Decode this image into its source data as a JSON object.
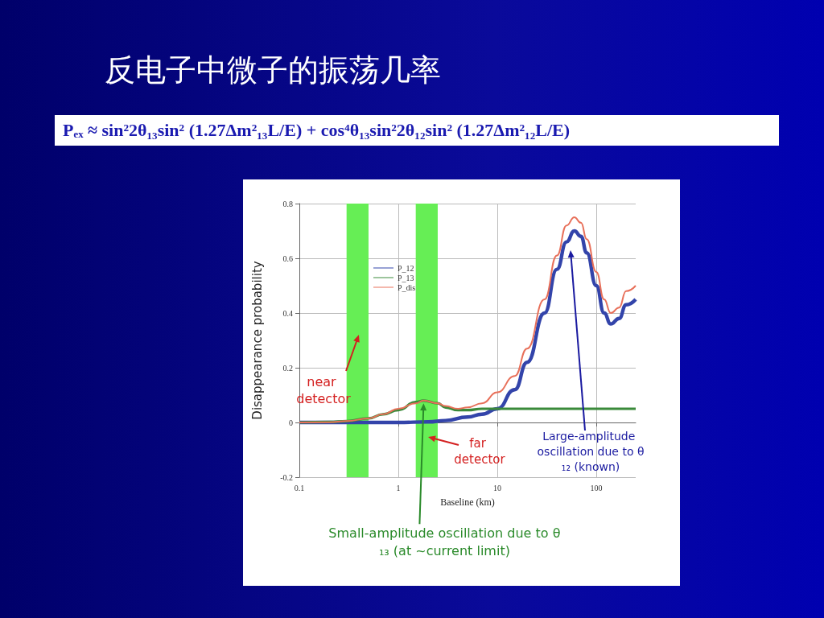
{
  "chart_data": {
    "type": "line",
    "title": "反电子中微子的振荡几率",
    "xlabel": "Baseline (km)",
    "ylabel": "Disappearance probability",
    "log": "x",
    "xlim": [
      0.1,
      250
    ],
    "xticks": [
      0.1,
      1,
      10,
      100
    ],
    "ylim": [
      -0.2,
      0.8
    ],
    "yticks": [
      -0.2,
      0,
      0.2,
      0.4,
      0.6,
      0.8
    ],
    "grid": true,
    "legend": "top left",
    "marker": "none",
    "series": [
      {
        "name": "P_12",
        "color": "#3344aa",
        "x": [
          0.1,
          0.3,
          1,
          2,
          3,
          5,
          7,
          10,
          15,
          20,
          30,
          40,
          50,
          60,
          70,
          80,
          100,
          120,
          140,
          170,
          200,
          250
        ],
        "values": [
          0,
          0,
          0,
          0.002,
          0.007,
          0.02,
          0.03,
          0.05,
          0.12,
          0.22,
          0.4,
          0.56,
          0.66,
          0.7,
          0.68,
          0.62,
          0.5,
          0.4,
          0.36,
          0.38,
          0.43,
          0.45
        ]
      },
      {
        "name": "P_13",
        "color": "#3a8a3a",
        "x": [
          0.1,
          0.2,
          0.3,
          0.5,
          0.7,
          1,
          1.5,
          1.8,
          2.5,
          3,
          4,
          5,
          7,
          10,
          20,
          50,
          100,
          250
        ],
        "values": [
          0,
          0.002,
          0.005,
          0.015,
          0.03,
          0.045,
          0.075,
          0.08,
          0.07,
          0.055,
          0.045,
          0.045,
          0.05,
          0.05,
          0.05,
          0.05,
          0.05,
          0.05
        ]
      },
      {
        "name": "P_dis",
        "color": "#e8705a",
        "x": [
          0.1,
          0.2,
          0.3,
          0.5,
          0.7,
          1,
          1.5,
          1.8,
          2.5,
          3,
          4,
          5,
          7,
          10,
          15,
          20,
          30,
          40,
          50,
          60,
          70,
          80,
          100,
          120,
          140,
          170,
          200,
          250
        ],
        "values": [
          0,
          0.001,
          0.005,
          0.015,
          0.03,
          0.05,
          0.07,
          0.08,
          0.07,
          0.06,
          0.05,
          0.055,
          0.07,
          0.11,
          0.17,
          0.27,
          0.45,
          0.61,
          0.72,
          0.75,
          0.73,
          0.67,
          0.55,
          0.45,
          0.4,
          0.42,
          0.48,
          0.5
        ]
      }
    ],
    "bands": [
      {
        "axis": "x",
        "from": 0.3,
        "to": 0.5,
        "color": "#66ee55"
      },
      {
        "axis": "x",
        "from": 1.5,
        "to": 2.5,
        "color": "#66ee55"
      }
    ],
    "annotations": [
      "Pₑₓ ≈ sin²2θ₁₃sin² (1.27Δm²₁₃L/E) + cos⁴θ₁₃sin²2θ₁₂sin² (1.27Δm²₁₂L/E)",
      "near detector",
      "far detector",
      "Large-amplitude oscillation due to θ₁₂ (known)",
      {
        "text": "Small-amplitude oscillation due to θ₁₃ (at ~current limit)",
        "x": 1.8,
        "y": 0.07
      }
    ]
  }
}
